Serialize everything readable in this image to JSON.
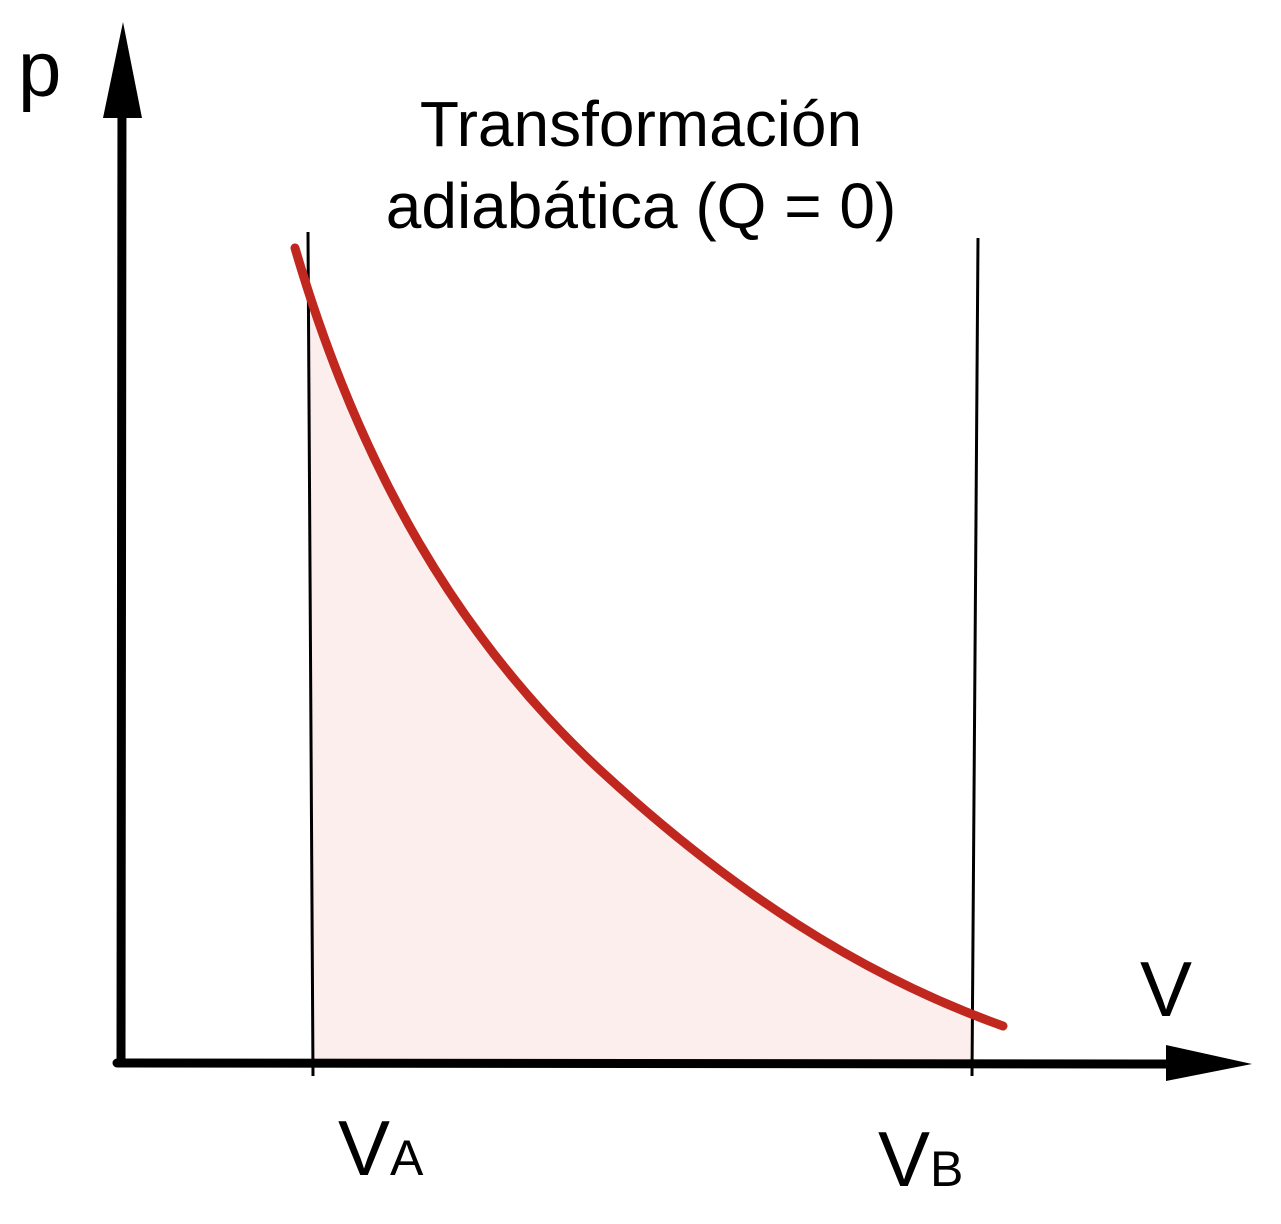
{
  "diagram": {
    "title_line1": "Transformación",
    "title_line2": "adiabática (Q = 0)",
    "y_axis_label": "p",
    "x_axis_label": "V",
    "volume_a": {
      "main": "V",
      "sub": "A"
    },
    "volume_b": {
      "main": "V",
      "sub": "B"
    }
  },
  "colors": {
    "curve": "#c0281f",
    "area_fill": "#fdeeee",
    "axes": "#000000"
  }
}
